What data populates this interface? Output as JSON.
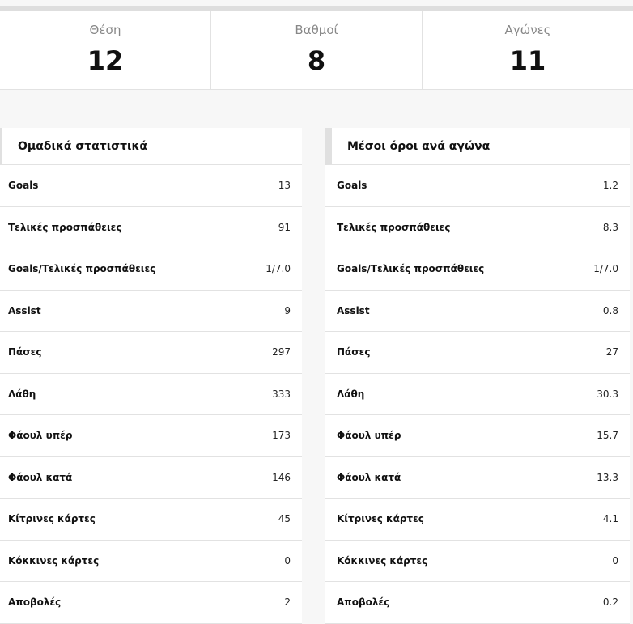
{
  "summary": [
    {
      "label": "Θέση",
      "value": "12"
    },
    {
      "label": "Βαθμοί",
      "value": "8"
    },
    {
      "label": "Αγώνες",
      "value": "11"
    }
  ],
  "team_stats": {
    "title": "Ομαδικά στατιστικά",
    "rows": [
      {
        "label": "Goals",
        "value": "13"
      },
      {
        "label": "Τελικές προσπάθειες",
        "value": "91"
      },
      {
        "label": "Goals/Τελικές προσπάθειες",
        "value": "1/7.0"
      },
      {
        "label": "Assist",
        "value": "9"
      },
      {
        "label": "Πάσες",
        "value": "297"
      },
      {
        "label": "Λάθη",
        "value": "333"
      },
      {
        "label": "Φάουλ υπέρ",
        "value": "173"
      },
      {
        "label": "Φάουλ κατά",
        "value": "146"
      },
      {
        "label": "Κίτρινες κάρτες",
        "value": "45"
      },
      {
        "label": "Κόκκινες κάρτες",
        "value": "0"
      },
      {
        "label": "Αποβολές",
        "value": "2"
      }
    ]
  },
  "averages": {
    "title": "Μέσοι όροι ανά αγώνα",
    "rows": [
      {
        "label": "Goals",
        "value": "1.2"
      },
      {
        "label": "Τελικές προσπάθειες",
        "value": "8.3"
      },
      {
        "label": "Goals/Τελικές προσπάθειες",
        "value": "1/7.0"
      },
      {
        "label": "Assist",
        "value": "0.8"
      },
      {
        "label": "Πάσες",
        "value": "27"
      },
      {
        "label": "Λάθη",
        "value": "30.3"
      },
      {
        "label": "Φάουλ υπέρ",
        "value": "15.7"
      },
      {
        "label": "Φάουλ κατά",
        "value": "13.3"
      },
      {
        "label": "Κίτρινες κάρτες",
        "value": "4.1"
      },
      {
        "label": "Κόκκινες κάρτες",
        "value": "0"
      },
      {
        "label": "Αποβολές",
        "value": "0.2"
      }
    ]
  }
}
